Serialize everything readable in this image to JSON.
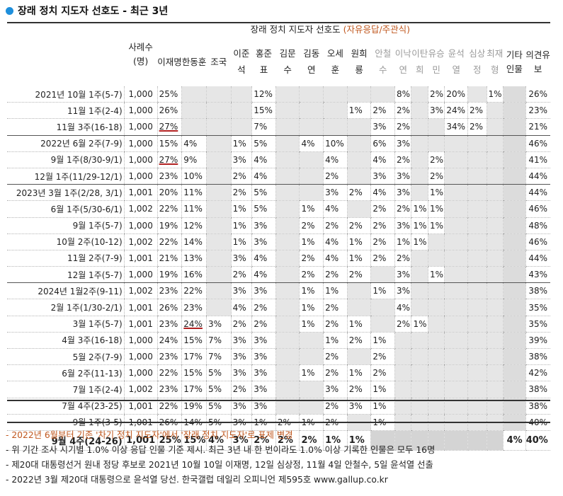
{
  "title": "장래 정치 지도자 선호도 - 최근 3년",
  "header": {
    "sample": "사례수(명)",
    "group_black": "장래 정치 지도자 선호도 ",
    "group_orange": "(자유응답/주관식)",
    "candidates": [
      "이재명",
      "한동훈",
      "조국",
      "이준석",
      "홍준표",
      "김문수",
      "김동연",
      "오세훈",
      "원희룡",
      "안철수",
      "이낙연",
      "이탄희",
      "유승민",
      "윤석열",
      "심상정",
      "최재형"
    ],
    "etc": "기타인물",
    "reserve": "의견유보"
  },
  "rows": [
    {
      "label": "2021년 10월 1주(5-7)",
      "n": "1,000",
      "v": [
        "25%",
        "",
        "",
        "",
        "12%",
        "",
        "",
        "",
        "",
        "",
        "8%",
        "",
        "2%",
        "20%",
        "",
        "1%"
      ],
      "etc": "",
      "res": "26%",
      "u": []
    },
    {
      "label": "11월 1주(2-4)",
      "n": "1,000",
      "v": [
        "26%",
        "",
        "",
        "",
        "15%",
        "",
        "",
        "",
        "1%",
        "2%",
        "2%",
        "",
        "3%",
        "24%",
        "2%",
        ""
      ],
      "etc": "",
      "res": "23%",
      "u": []
    },
    {
      "label": "11월 3주(16-18)",
      "n": "1,000",
      "v": [
        "27%",
        "",
        "",
        "",
        "7%",
        "",
        "",
        "",
        "",
        "3%",
        "2%",
        "",
        "",
        "34%",
        "2%",
        ""
      ],
      "etc": "",
      "res": "21%",
      "u": [
        0
      ]
    },
    {
      "label": "2022년 6월 2주(7-9)",
      "n": "1,000",
      "v": [
        "15%",
        "4%",
        "",
        "1%",
        "5%",
        "",
        "4%",
        "10%",
        "",
        "6%",
        "3%",
        "",
        "",
        "",
        "",
        ""
      ],
      "etc": "",
      "res": "46%",
      "u": [],
      "sep": true
    },
    {
      "label": "9월 1주(8/30-9/1)",
      "n": "1,000",
      "v": [
        "27%",
        "9%",
        "",
        "3%",
        "4%",
        "",
        "",
        "4%",
        "",
        "4%",
        "2%",
        "",
        "2%",
        "",
        "",
        ""
      ],
      "etc": "",
      "res": "41%",
      "u": [
        0
      ]
    },
    {
      "label": "12월 1주(11/29-12/1)",
      "n": "1,000",
      "v": [
        "23%",
        "10%",
        "",
        "2%",
        "4%",
        "",
        "",
        "2%",
        "",
        "3%",
        "3%",
        "",
        "2%",
        "",
        "",
        ""
      ],
      "etc": "",
      "res": "44%",
      "u": []
    },
    {
      "label": "2023년 3월 1주(2/28, 3/1)",
      "n": "1,001",
      "v": [
        "20%",
        "11%",
        "",
        "2%",
        "5%",
        "",
        "",
        "3%",
        "2%",
        "4%",
        "3%",
        "",
        "1%",
        "",
        "",
        ""
      ],
      "etc": "",
      "res": "44%",
      "u": [],
      "sep": true
    },
    {
      "label": "6월 1주(5/30-6/1)",
      "n": "1,002",
      "v": [
        "22%",
        "11%",
        "",
        "1%",
        "5%",
        "",
        "1%",
        "4%",
        "",
        "2%",
        "2%",
        "1%",
        "1%",
        "",
        "",
        ""
      ],
      "etc": "",
      "res": "46%",
      "u": []
    },
    {
      "label": "9월 1주(5-7)",
      "n": "1,000",
      "v": [
        "19%",
        "12%",
        "",
        "1%",
        "3%",
        "",
        "2%",
        "2%",
        "2%",
        "2%",
        "3%",
        "1%",
        "1%",
        "",
        "",
        ""
      ],
      "etc": "",
      "res": "48%",
      "u": []
    },
    {
      "label": "10월 2주(10-12)",
      "n": "1,002",
      "v": [
        "22%",
        "14%",
        "",
        "1%",
        "3%",
        "",
        "1%",
        "4%",
        "1%",
        "2%",
        "1%",
        "1%",
        "",
        "",
        "",
        ""
      ],
      "etc": "",
      "res": "46%",
      "u": []
    },
    {
      "label": "11월 2주(7-9)",
      "n": "1,001",
      "v": [
        "21%",
        "13%",
        "",
        "3%",
        "4%",
        "",
        "2%",
        "4%",
        "1%",
        "2%",
        "2%",
        "",
        "",
        "",
        "",
        ""
      ],
      "etc": "",
      "res": "44%",
      "u": []
    },
    {
      "label": "12월 1주(5-7)",
      "n": "1,000",
      "v": [
        "19%",
        "16%",
        "",
        "2%",
        "4%",
        "",
        "2%",
        "2%",
        "2%",
        "",
        "3%",
        "",
        "1%",
        "",
        "",
        ""
      ],
      "etc": "",
      "res": "43%",
      "u": []
    },
    {
      "label": "2024년 1월2주(9-11)",
      "n": "1,002",
      "v": [
        "23%",
        "22%",
        "",
        "3%",
        "3%",
        "",
        "1%",
        "1%",
        "",
        "1%",
        "3%",
        "",
        "",
        "",
        "",
        ""
      ],
      "etc": "",
      "res": "38%",
      "u": [],
      "sep": true
    },
    {
      "label": "2월 1주(1/30-2/1)",
      "n": "1,001",
      "v": [
        "26%",
        "23%",
        "",
        "4%",
        "2%",
        "",
        "1%",
        "2%",
        "",
        "",
        "4%",
        "",
        "",
        "",
        "",
        ""
      ],
      "etc": "",
      "res": "35%",
      "u": []
    },
    {
      "label": "3월 1주(5-7)",
      "n": "1,001",
      "v": [
        "23%",
        "24%",
        "3%",
        "2%",
        "2%",
        "",
        "1%",
        "2%",
        "1%",
        "",
        "2%",
        "1%",
        "",
        "",
        "",
        ""
      ],
      "etc": "",
      "res": "35%",
      "u": [
        1
      ]
    },
    {
      "label": "4월 3주(16-18)",
      "n": "1,000",
      "v": [
        "24%",
        "15%",
        "7%",
        "3%",
        "3%",
        "",
        "",
        "1%",
        "2%",
        "1%",
        "",
        "",
        "",
        "",
        "",
        ""
      ],
      "etc": "",
      "res": "39%",
      "u": []
    },
    {
      "label": "5월 2주(7-9)",
      "n": "1,000",
      "v": [
        "23%",
        "17%",
        "7%",
        "3%",
        "3%",
        "",
        "",
        "2%",
        "",
        "2%",
        "",
        "",
        "",
        "",
        "",
        ""
      ],
      "etc": "",
      "res": "38%",
      "u": []
    },
    {
      "label": "6월 2주(11-13)",
      "n": "1,000",
      "v": [
        "22%",
        "15%",
        "5%",
        "3%",
        "3%",
        "",
        "1%",
        "2%",
        "1%",
        "2%",
        "",
        "",
        "",
        "",
        "",
        ""
      ],
      "etc": "",
      "res": "42%",
      "u": []
    },
    {
      "label": "7월 1주(2-4)",
      "n": "1,002",
      "v": [
        "23%",
        "17%",
        "5%",
        "2%",
        "3%",
        "",
        "",
        "3%",
        "2%",
        "1%",
        "",
        "",
        "",
        "",
        "",
        ""
      ],
      "etc": "",
      "res": "38%",
      "u": []
    },
    {
      "label": "7월 4주(23-25)",
      "n": "1,001",
      "v": [
        "22%",
        "19%",
        "5%",
        "3%",
        "3%",
        "",
        "",
        "2%",
        "3%",
        "1%",
        "",
        "",
        "",
        "",
        "",
        ""
      ],
      "etc": "",
      "res": "38%",
      "u": []
    },
    {
      "label": "9월 1주(3-5)",
      "n": "1,001",
      "v": [
        "26%",
        "14%",
        "5%",
        "3%",
        "1%",
        "2%",
        "1%",
        "2%",
        "",
        "1%",
        "",
        "",
        "",
        "",
        "",
        ""
      ],
      "etc": "",
      "res": "40%",
      "u": []
    },
    {
      "label": "9월 4주(24-26)",
      "n": "1,001",
      "v": [
        "25%",
        "15%",
        "4%",
        "3%",
        "2%",
        "2%",
        "2%",
        "1%",
        "1%",
        "",
        "",
        "",
        "",
        "",
        "",
        ""
      ],
      "etc": "4%",
      "res": "40%",
      "u": [],
      "last": true
    }
  ],
  "notes": {
    "n1": "- 2022년 6월부터 기존 '차기 정치 지도자'에서 '장래 정치 지도자'로 표제 변경",
    "n2": "- 위 기간 조사 시기별 1.0% 이상 응답 인물 기준 제시. 최근 3년 내 한 번이라도 1.0% 이상 기록한 인물은 모두 16명",
    "n3": "- 제20대 대통령선거 원내 정당 후보로 2021년 10월 10일 이재명, 12일 심상정, 11월 4일 안철수, 5일 윤석열 선출",
    "n4": "- 2022년 3월 제20대 대통령으로 윤석열 당선. 한국갤럽 데일리 오피니언 제595호 www.gallup.co.kr"
  }
}
